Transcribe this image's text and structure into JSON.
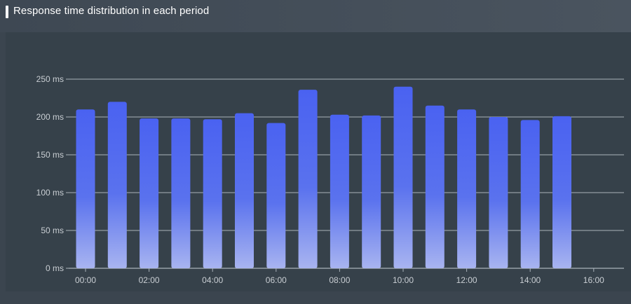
{
  "header": {
    "title": "Response time distribution in each period"
  },
  "chart_data": {
    "type": "bar",
    "title": "Response time distribution in each period",
    "xlabel": "",
    "ylabel": "",
    "unit": "ms",
    "categories": [
      "00:00",
      "01:00",
      "02:00",
      "03:00",
      "04:00",
      "05:00",
      "06:00",
      "07:00",
      "08:00",
      "09:00",
      "10:00",
      "11:00",
      "12:00",
      "13:00",
      "14:00",
      "15:00"
    ],
    "values": [
      210,
      220,
      198,
      198,
      197,
      205,
      192,
      236,
      203,
      202,
      240,
      215,
      210,
      200,
      196,
      201
    ],
    "ylim": [
      0,
      250
    ],
    "y_ticks": [
      "0 ms",
      "50 ms",
      "100 ms",
      "150 ms",
      "200 ms",
      "250 ms"
    ],
    "x_ticks": [
      "00:00",
      "02:00",
      "04:00",
      "06:00",
      "08:00",
      "10:00",
      "12:00",
      "14:00",
      "16:00"
    ],
    "grid": true,
    "colors": {
      "bar_top": "#4a62f1",
      "bar_mid": "#5a72ee",
      "bar_bottom": "#a8b4f0",
      "grid": "#aab2ba",
      "axis_text": "#c9ced3"
    }
  }
}
